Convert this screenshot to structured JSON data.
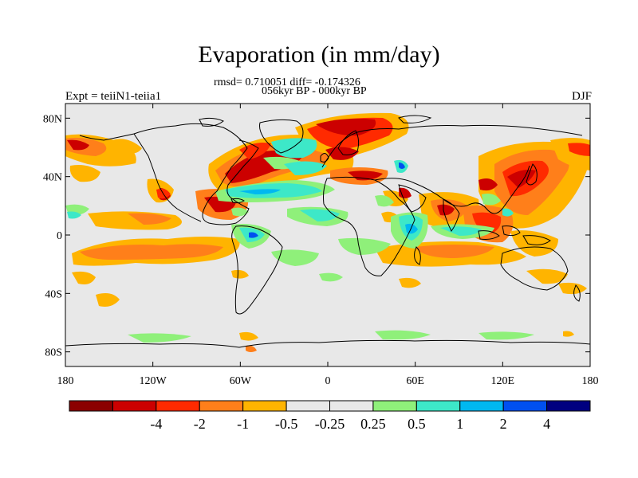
{
  "title": "Evaporation (in mm/day)",
  "stats": {
    "line1": "rmsd= 0.710051 diff= -0.174326",
    "line2": "056kyr BP - 000kyr BP"
  },
  "experiment_label": "Expt = teiiN1-teiia1",
  "season_label": "DJF",
  "lat_ticks": [
    {
      "label": "80N",
      "value": 80
    },
    {
      "label": "40N",
      "value": 40
    },
    {
      "label": "0",
      "value": 0
    },
    {
      "label": "40S",
      "value": -40
    },
    {
      "label": "80S",
      "value": -80
    }
  ],
  "lon_ticks": [
    {
      "label": "180",
      "value": -180
    },
    {
      "label": "120W",
      "value": -120
    },
    {
      "label": "60W",
      "value": -60
    },
    {
      "label": "0",
      "value": 0
    },
    {
      "label": "60E",
      "value": 60
    },
    {
      "label": "120E",
      "value": 120
    },
    {
      "label": "180",
      "value": 180
    }
  ],
  "colorbar": {
    "colors": [
      "#8b0000",
      "#cc0000",
      "#ff2a00",
      "#ff7f1a",
      "#ffb400",
      "#e8e8e8",
      "#e8e8e8",
      "#8ff07a",
      "#3de8c8",
      "#00b8f0",
      "#0050f0",
      "#000080"
    ],
    "labels": [
      {
        "text": "-4",
        "boundary": 1
      },
      {
        "text": "-2",
        "boundary": 2
      },
      {
        "text": "-1",
        "boundary": 3
      },
      {
        "text": "-0.5",
        "boundary": 4
      },
      {
        "text": "-0.25",
        "boundary": 5
      },
      {
        "text": "0.25",
        "boundary": 6
      },
      {
        "text": "0.5",
        "boundary": 7
      },
      {
        "text": "1",
        "boundary": 8
      },
      {
        "text": "2",
        "boundary": 9
      },
      {
        "text": "4",
        "boundary": 10
      }
    ]
  },
  "colors": {
    "background": "#e8e8e8",
    "strong_negative": "#cc0000",
    "negative": "#ff2a00",
    "weak_negative": "#ffb400",
    "weak_positive": "#8ff07a",
    "positive": "#3de8c8",
    "strong_positive": "#0050f0"
  }
}
